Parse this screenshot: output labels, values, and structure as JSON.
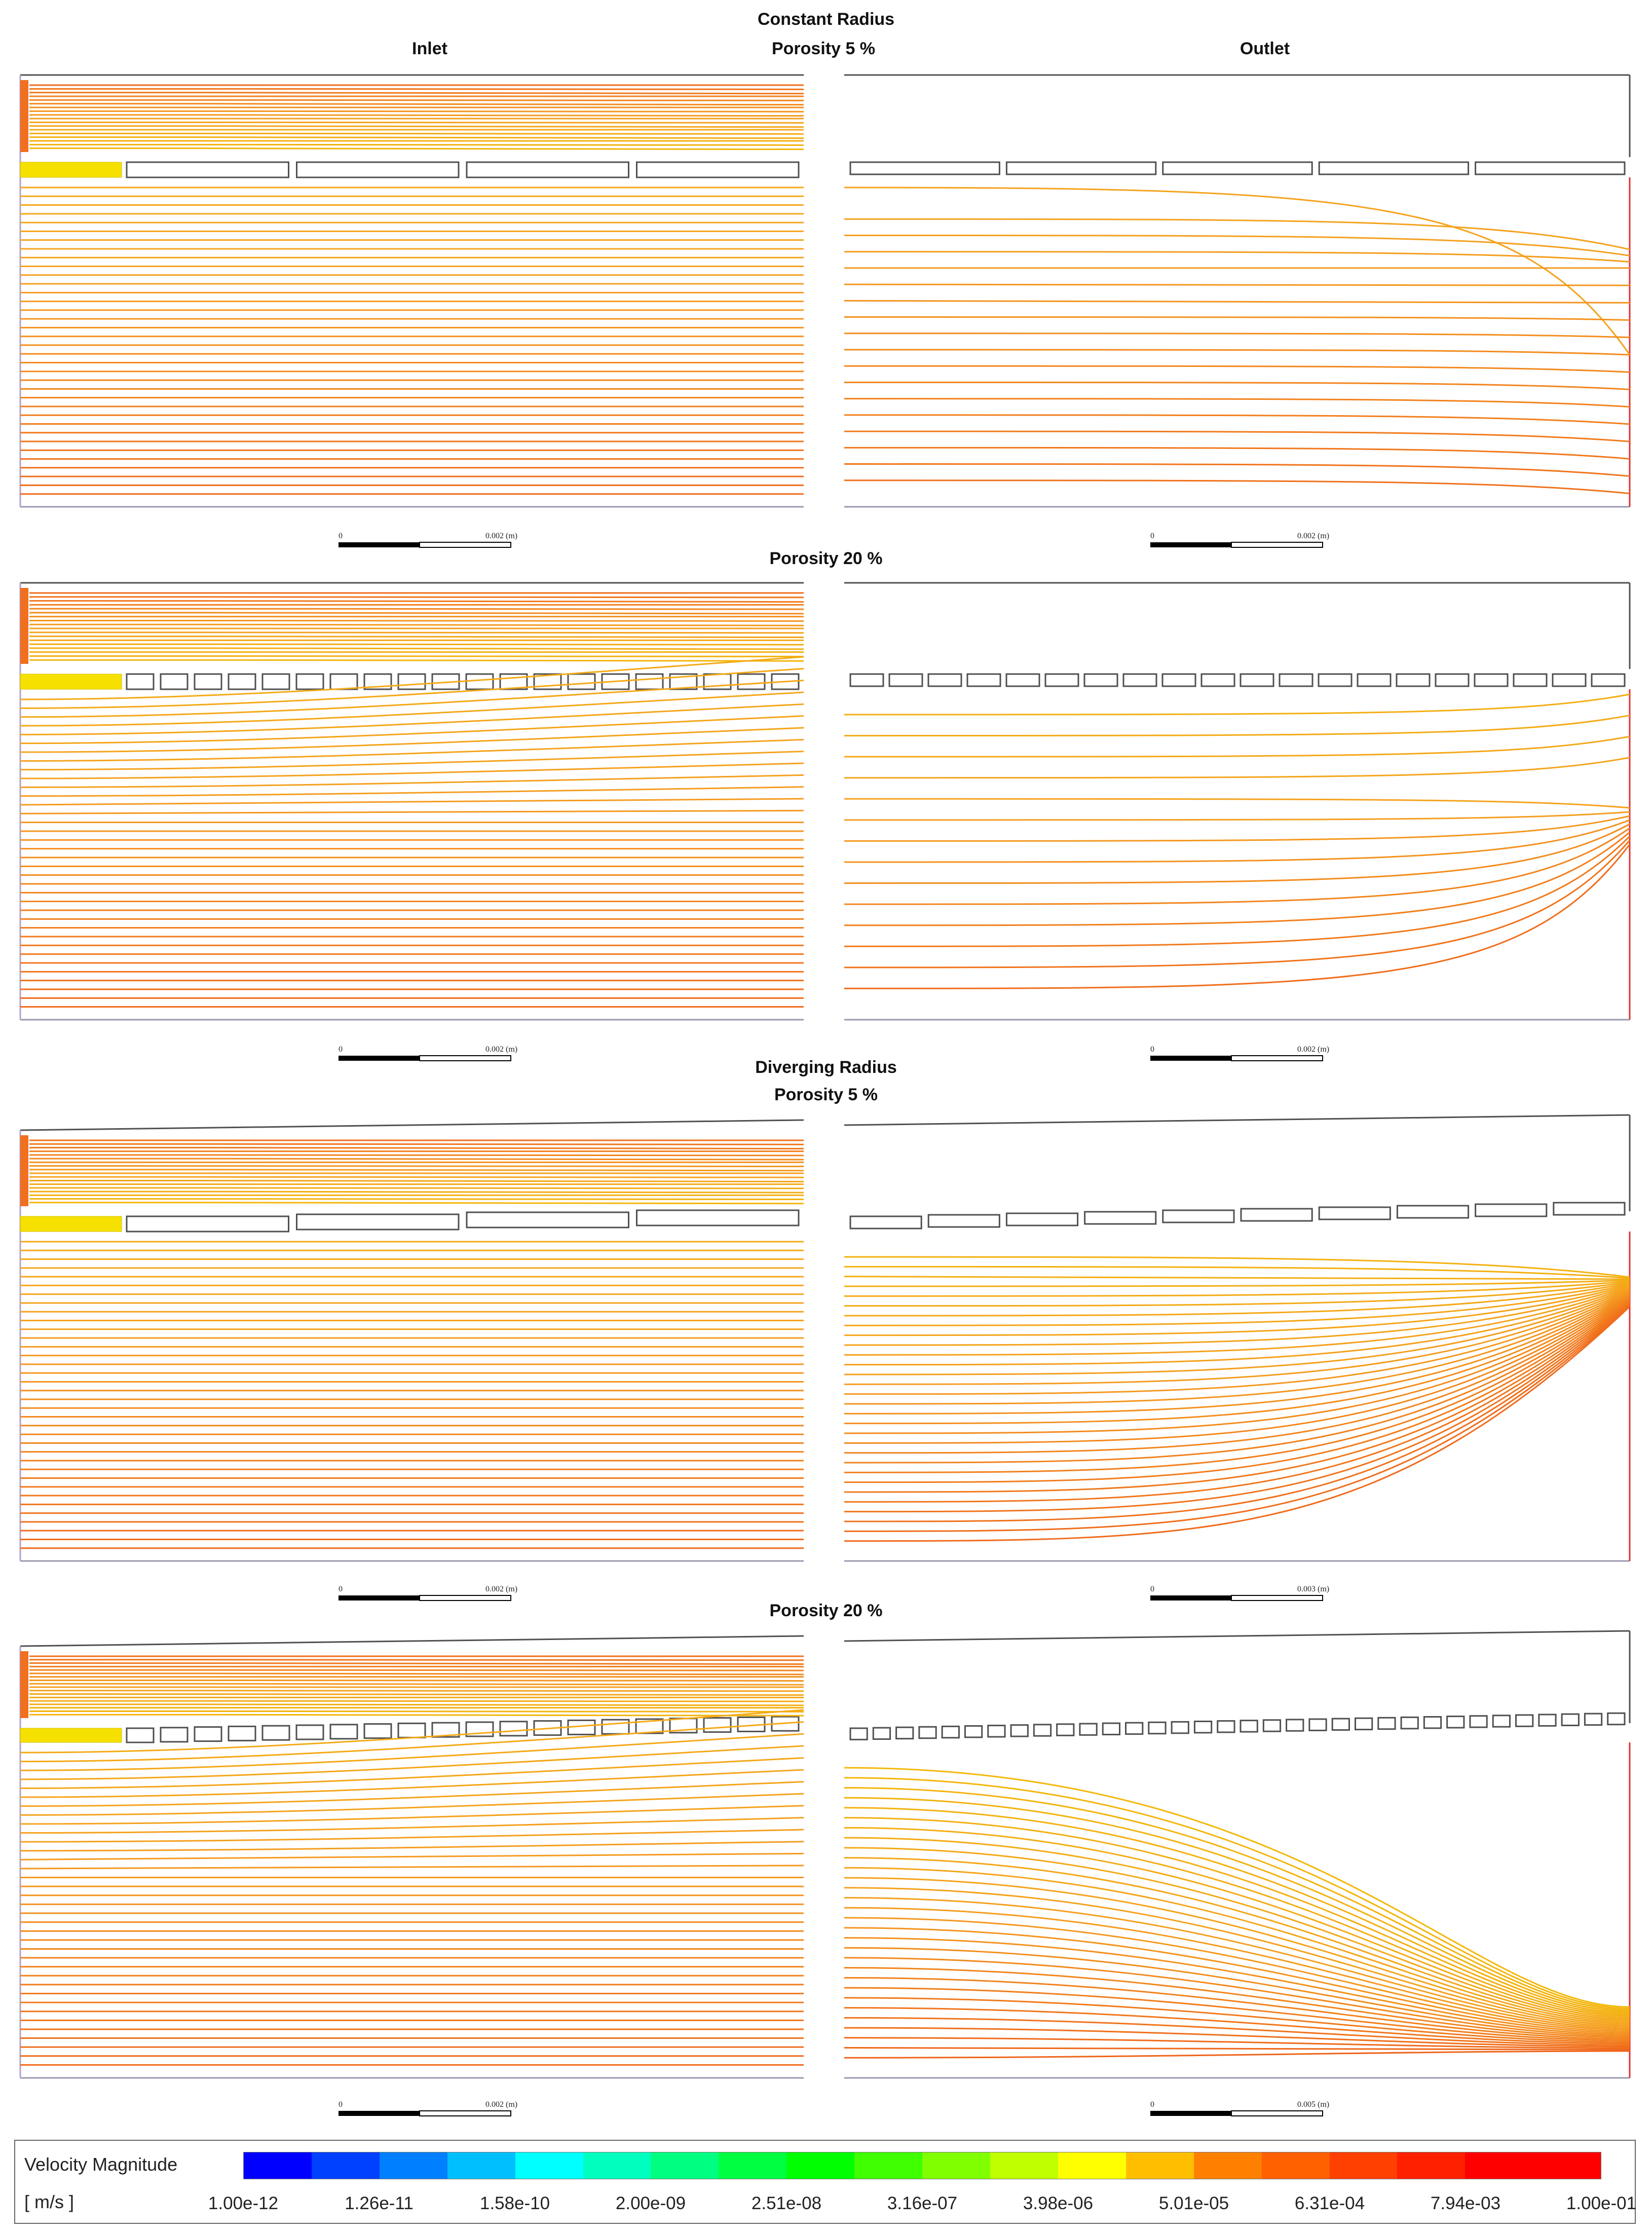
{
  "headers": {
    "constant_radius": "Constant Radius",
    "inlet": "Inlet",
    "outlet": "Outlet",
    "porosity_5_a": "Porosity 5 %",
    "porosity_20_a": "Porosity 20 %",
    "diverging_radius": "Diverging Radius",
    "porosity_5_b": "Porosity 5 %",
    "porosity_20_b": "Porosity 20 %"
  },
  "scale_bars": {
    "zero": "0",
    "inlet_label": "0.002 (m)",
    "outlet_label": "0.002 (m)",
    "outlet_label_wide": "0.003 (m)",
    "outlet_label_last": "0.005 (m)"
  },
  "legend": {
    "title": "Velocity Magnitude",
    "unit": "[ m/s ]",
    "ticks": [
      "1.00e-12",
      "1.26e-11",
      "1.58e-10",
      "2.00e-09",
      "2.51e-08",
      "3.16e-07",
      "3.98e-06",
      "5.01e-05",
      "6.31e-04",
      "7.94e-03",
      "1.00e-01"
    ],
    "colors": [
      "#0000ff",
      "#0040ff",
      "#0080ff",
      "#00bfff",
      "#00ffff",
      "#00ffbf",
      "#00ff80",
      "#00ff40",
      "#00ff00",
      "#40ff00",
      "#80ff00",
      "#bfff00",
      "#ffff00",
      "#ffbf00",
      "#ff8000",
      "#ff6000",
      "#ff4000",
      "#ff2000",
      "#ff0000",
      "#ff0000"
    ]
  },
  "streamline_colors": {
    "low": "#f2c200",
    "mid": "#f5a020",
    "high": "#ee5a1a",
    "max": "#e8281a",
    "wall": "#505050",
    "axis": "#9a9ab0"
  },
  "panels": [
    {
      "id": "cr5-inlet",
      "side": "inlet",
      "case": "constant-5",
      "scale": "inlet_label"
    },
    {
      "id": "cr5-outlet",
      "side": "outlet",
      "case": "constant-5",
      "scale": "outlet_label"
    },
    {
      "id": "cr20-inlet",
      "side": "inlet",
      "case": "constant-20",
      "scale": "inlet_label"
    },
    {
      "id": "cr20-outlet",
      "side": "outlet",
      "case": "constant-20",
      "scale": "outlet_label"
    },
    {
      "id": "dr5-inlet",
      "side": "inlet",
      "case": "diverging-5",
      "scale": "inlet_label"
    },
    {
      "id": "dr5-outlet",
      "side": "outlet",
      "case": "diverging-5",
      "scale": "outlet_label_wide"
    },
    {
      "id": "dr20-inlet",
      "side": "inlet",
      "case": "diverging-20",
      "scale": "inlet_label"
    },
    {
      "id": "dr20-outlet",
      "side": "outlet",
      "case": "diverging-20",
      "scale": "outlet_label_last"
    }
  ]
}
